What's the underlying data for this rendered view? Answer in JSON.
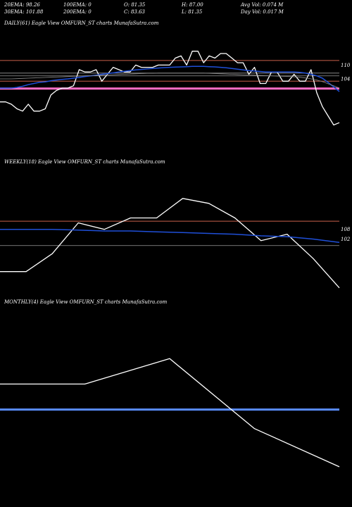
{
  "header": {
    "ema20": "20EMA: 98.26",
    "ema100": "100EMA: 0",
    "open": "O: 81.35",
    "high": "H: 87.00",
    "avg_vol": "Avg Vol: 0.074  M",
    "ema30": "30EMA: 101.88",
    "ema200": "200EMA: 0",
    "close": "C: 83.63",
    "low": "L: 81.35",
    "day_vol": "Day Vol: 0.017 M"
  },
  "colors": {
    "price": "#ffffff",
    "ema_blue": "#1f4fd8",
    "level_line": "#c8604a",
    "pink_band": "#ff6ec7",
    "grey_line": "#9a9a9a",
    "monthly_band": "#5a8cff"
  },
  "chart_data": [
    {
      "type": "line",
      "title": "DAILY(61) Eagle  View  OMFURN_ST charts MunafaSutra.com",
      "ylim": [
        71,
        126
      ],
      "y_ticks": [
        "110",
        "104"
      ],
      "tick_values": [
        110,
        104
      ],
      "hlines": [
        {
          "kind": "level",
          "y": 112
        },
        {
          "kind": "level",
          "y": 103
        },
        {
          "kind": "grey",
          "y": 106.5
        },
        {
          "kind": "grey",
          "y": 105.3
        },
        {
          "kind": "pink",
          "y": 99.8
        }
      ],
      "series": [
        {
          "role": "price",
          "values": [
            94,
            94,
            93,
            91,
            90,
            93,
            90,
            90,
            91,
            97,
            99,
            100,
            100,
            101,
            108,
            107,
            107,
            108,
            103,
            106,
            109,
            108,
            107,
            107,
            110,
            109,
            109,
            109,
            110,
            110,
            110,
            113,
            114,
            110,
            116,
            116,
            111,
            114,
            113,
            115,
            115,
            113,
            111,
            111,
            106,
            109,
            102,
            102,
            107,
            107,
            103,
            103,
            106,
            103,
            103,
            108,
            98,
            92,
            88,
            84,
            85
          ]
        },
        {
          "role": "ema_blue",
          "values": [
            100,
            100,
            100,
            100.3,
            100.8,
            101.5,
            102,
            102.5,
            102.7,
            103.2,
            103.5,
            103.8,
            104,
            104.3,
            104.6,
            105,
            105.3,
            105.6,
            106,
            106.3,
            106.6,
            107,
            107.3,
            107.6,
            107.9,
            108.1,
            108.3,
            108.5,
            108.7,
            108.9,
            109,
            109.1,
            109.2,
            109.3,
            109.4,
            109.4,
            109.4,
            109.3,
            109.2,
            109,
            108.8,
            108.5,
            108.2,
            107.9,
            107.6,
            107.4,
            107.2,
            107,
            107,
            107,
            107,
            107,
            107,
            106.8,
            106.5,
            106,
            105.3,
            104.3,
            102.5,
            100.5,
            98.5
          ]
        },
        {
          "role": "ema_dark",
          "values": [
            104,
            104,
            104,
            104.1,
            104.2,
            104.3,
            104.4,
            104.5,
            104.6,
            104.7,
            104.8,
            104.9,
            105,
            105.1,
            105.2,
            105.3,
            105.4,
            105.5,
            105.6,
            105.7,
            105.8,
            105.9,
            106,
            106.1,
            106.2,
            106.3,
            106.4,
            106.4,
            106.5,
            106.5,
            106.5,
            106.5,
            106.5,
            106.5,
            106.5,
            106.5,
            106.5,
            106.4,
            106.3,
            106.2,
            106.1,
            106,
            105.9,
            105.8,
            105.7,
            105.6,
            105.5,
            105.4,
            105.3,
            105.2,
            105.1,
            105,
            104.9,
            104.7,
            104.4,
            104,
            103.5,
            102.8,
            101.9,
            101,
            100
          ]
        }
      ]
    },
    {
      "type": "line",
      "title": "WEEKLY(18) Eagle  View  OMFURN_ST charts MunafaSutra.com",
      "ylim": [
        68,
        146
      ],
      "y_ticks": [
        "108",
        "102"
      ],
      "tick_values": [
        108,
        102
      ],
      "hlines": [
        {
          "kind": "level",
          "y": 113
        },
        {
          "kind": "grey",
          "y": 98
        }
      ],
      "series": [
        {
          "role": "price",
          "values": [
            82,
            82,
            93,
            112,
            108,
            115,
            115,
            127,
            124,
            115,
            101,
            105,
            90,
            72
          ]
        },
        {
          "role": "ema_blue",
          "values": [
            108,
            108,
            108,
            107.5,
            107,
            107,
            106.5,
            106,
            105.5,
            105,
            104,
            103.5,
            102,
            100
          ]
        }
      ]
    },
    {
      "type": "line",
      "title": "MONTHLY(4) Eagle  View  OMFURN_ST charts MunafaSutra.com",
      "ylim": [
        40,
        180
      ],
      "y_ticks": [],
      "tick_values": [],
      "hlines": [
        {
          "kind": "monthly_band",
          "y": 100
        }
      ],
      "series": [
        {
          "role": "price",
          "values": [
            120,
            120,
            140,
            85,
            55
          ]
        }
      ]
    }
  ]
}
